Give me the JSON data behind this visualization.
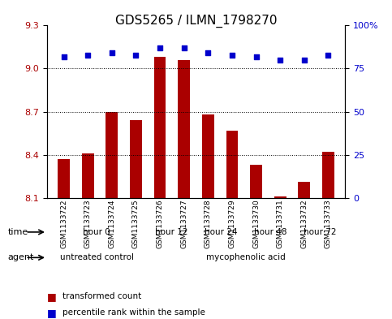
{
  "title": "GDS5265 / ILMN_1798270",
  "samples": [
    "GSM1133722",
    "GSM1133723",
    "GSM1133724",
    "GSM1133725",
    "GSM1133726",
    "GSM1133727",
    "GSM1133728",
    "GSM1133729",
    "GSM1133730",
    "GSM1133731",
    "GSM1133732",
    "GSM1133733"
  ],
  "bar_values": [
    8.37,
    8.41,
    8.7,
    8.64,
    9.08,
    9.06,
    8.68,
    8.57,
    8.33,
    8.11,
    8.21,
    8.42
  ],
  "percentile_values": [
    82,
    83,
    84,
    83,
    87,
    87,
    84,
    83,
    82,
    80,
    80,
    83
  ],
  "bar_color": "#AA0000",
  "dot_color": "#0000CC",
  "ylim_left": [
    8.1,
    9.3
  ],
  "ylim_right": [
    0,
    100
  ],
  "yticks_left": [
    8.1,
    8.4,
    8.7,
    9.0,
    9.3
  ],
  "yticks_right": [
    0,
    25,
    50,
    75,
    100
  ],
  "grid_values": [
    9.0,
    8.7,
    8.4
  ],
  "time_groups": [
    {
      "label": "hour 0",
      "start": 0,
      "end": 4,
      "color": "#ccffcc"
    },
    {
      "label": "hour 12",
      "start": 4,
      "end": 6,
      "color": "#aaffaa"
    },
    {
      "label": "hour 24",
      "start": 6,
      "end": 8,
      "color": "#88ee88"
    },
    {
      "label": "hour 48",
      "start": 8,
      "end": 10,
      "color": "#66dd66"
    },
    {
      "label": "hour 72",
      "start": 10,
      "end": 12,
      "color": "#44cc44"
    }
  ],
  "agent_groups": [
    {
      "label": "untreated control",
      "start": 0,
      "end": 4,
      "color": "#ffaaff"
    },
    {
      "label": "mycophenolic acid",
      "start": 4,
      "end": 12,
      "color": "#ffccff"
    }
  ],
  "legend_bar_label": "transformed count",
  "legend_dot_label": "percentile rank within the sample",
  "background_color": "#ffffff",
  "plot_bg": "#ffffff",
  "tick_label_color_left": "#AA0000",
  "tick_label_color_right": "#0000CC"
}
